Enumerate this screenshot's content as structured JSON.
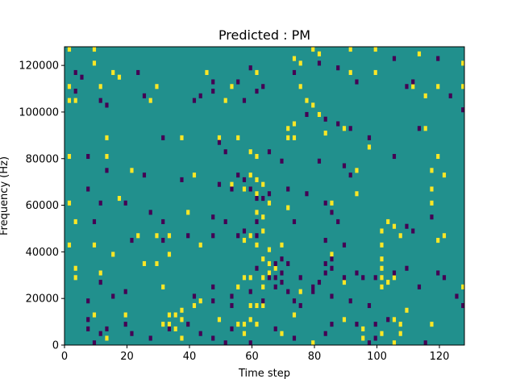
{
  "chart_data": {
    "type": "heatmap",
    "title": "Predicted : PM",
    "xlabel": "Time step",
    "ylabel": "Frequency (Hz)",
    "xlim": [
      0,
      128
    ],
    "ylim": [
      0,
      128000
    ],
    "xticks": [
      0,
      20,
      40,
      60,
      80,
      100,
      120
    ],
    "yticks": [
      0,
      20000,
      40000,
      60000,
      80000,
      100000,
      120000
    ],
    "ytick_labels": [
      "0",
      "20000",
      "40000",
      "60000",
      "80000",
      "100000",
      "120000"
    ],
    "grid": false,
    "legend": "none",
    "n_time_steps": 128,
    "n_freq_bins": 64,
    "bin_hz": 2000,
    "colors": {
      "background": "#21908d",
      "high": "#fde725",
      "low": "#440154"
    },
    "high_cells": [
      [
        1,
        127000
      ],
      [
        9,
        127000
      ],
      [
        79,
        127000
      ],
      [
        81,
        125000
      ],
      [
        91,
        127000
      ],
      [
        99,
        127000
      ],
      [
        113,
        125000
      ],
      [
        9,
        121000
      ],
      [
        73,
        123000
      ],
      [
        75,
        121000
      ],
      [
        127,
        121000
      ],
      [
        15,
        117000
      ],
      [
        45,
        117000
      ],
      [
        61,
        117000
      ],
      [
        99,
        117000
      ],
      [
        91,
        117000
      ],
      [
        1,
        111000
      ],
      [
        11,
        111000
      ],
      [
        17,
        115000
      ],
      [
        29,
        111000
      ],
      [
        53,
        111000
      ],
      [
        75,
        111000
      ],
      [
        111,
        111000
      ],
      [
        115,
        107000
      ],
      [
        119,
        111000
      ],
      [
        127,
        111000
      ],
      [
        1,
        105000
      ],
      [
        3,
        105000
      ],
      [
        51,
        105000
      ],
      [
        77,
        105000
      ],
      [
        27,
        105000
      ],
      [
        79,
        103000
      ],
      [
        81,
        99000
      ],
      [
        73,
        95000
      ],
      [
        71,
        93000
      ],
      [
        89,
        93000
      ],
      [
        115,
        93000
      ],
      [
        83,
        91000
      ],
      [
        37,
        89000
      ],
      [
        13,
        89000
      ],
      [
        49,
        89000
      ],
      [
        55,
        89000
      ],
      [
        71,
        89000
      ],
      [
        73,
        89000
      ],
      [
        97,
        85000
      ],
      [
        1,
        81000
      ],
      [
        13,
        81000
      ],
      [
        59,
        83000
      ],
      [
        61,
        81000
      ],
      [
        119,
        81000
      ],
      [
        21,
        75000
      ],
      [
        41,
        73000
      ],
      [
        59,
        73000
      ],
      [
        61,
        71000
      ],
      [
        63,
        69000
      ],
      [
        53,
        69000
      ],
      [
        93,
        75000
      ],
      [
        117,
        75000
      ],
      [
        121,
        73000
      ],
      [
        57,
        67000
      ],
      [
        61,
        65000
      ],
      [
        17,
        63000
      ],
      [
        117,
        67000
      ],
      [
        93,
        65000
      ],
      [
        65,
        61000
      ],
      [
        71,
        59000
      ],
      [
        1,
        61000
      ],
      [
        85,
        61000
      ],
      [
        117,
        61000
      ],
      [
        39,
        57000
      ],
      [
        61,
        57000
      ],
      [
        63,
        55000
      ],
      [
        3,
        53000
      ],
      [
        103,
        53000
      ],
      [
        105,
        51000
      ],
      [
        63,
        49000
      ],
      [
        101,
        49000
      ],
      [
        107,
        47000
      ],
      [
        23,
        47000
      ],
      [
        29,
        47000
      ],
      [
        33,
        47000
      ],
      [
        59,
        47000
      ],
      [
        121,
        47000
      ],
      [
        57,
        45000
      ],
      [
        43,
        43000
      ],
      [
        61,
        43000
      ],
      [
        69,
        43000
      ],
      [
        1,
        43000
      ],
      [
        9,
        43000
      ],
      [
        101,
        43000
      ],
      [
        119,
        45000
      ],
      [
        65,
        41000
      ],
      [
        33,
        39000
      ],
      [
        15,
        39000
      ],
      [
        25,
        35000
      ],
      [
        29,
        35000
      ],
      [
        63,
        37000
      ],
      [
        65,
        35000
      ],
      [
        65,
        31000
      ],
      [
        63,
        29000
      ],
      [
        67,
        33000
      ],
      [
        85,
        39000
      ],
      [
        3,
        33000
      ],
      [
        11,
        31000
      ],
      [
        101,
        37000
      ],
      [
        101,
        33000
      ],
      [
        101,
        29000
      ],
      [
        59,
        29000
      ],
      [
        57,
        29000
      ],
      [
        103,
        27000
      ],
      [
        105,
        29000
      ],
      [
        55,
        25000
      ],
      [
        63,
        25000
      ],
      [
        31,
        25000
      ],
      [
        3,
        29000
      ],
      [
        127,
        25000
      ],
      [
        75,
        23000
      ],
      [
        101,
        25000
      ],
      [
        89,
        27000
      ],
      [
        43,
        19000
      ],
      [
        41,
        17000
      ],
      [
        61,
        17000
      ],
      [
        59,
        17000
      ],
      [
        63,
        17000
      ],
      [
        37,
        15000
      ],
      [
        35,
        13000
      ],
      [
        33,
        13000
      ],
      [
        31,
        9000
      ],
      [
        33,
        9000
      ],
      [
        35,
        7000
      ],
      [
        37,
        11000
      ],
      [
        49,
        11000
      ],
      [
        9,
        13000
      ],
      [
        19,
        13000
      ],
      [
        73,
        13000
      ],
      [
        89,
        11000
      ],
      [
        105,
        11000
      ],
      [
        107,
        9000
      ],
      [
        109,
        15000
      ],
      [
        117,
        9000
      ],
      [
        55,
        9000
      ],
      [
        57,
        9000
      ],
      [
        59,
        11000
      ],
      [
        61,
        9000
      ],
      [
        57,
        5000
      ],
      [
        69,
        5000
      ],
      [
        37,
        3000
      ],
      [
        13,
        3000
      ],
      [
        95,
        7000
      ],
      [
        95,
        3000
      ],
      [
        107,
        5000
      ],
      [
        105,
        1000
      ],
      [
        79,
        1000
      ],
      [
        101,
        5000
      ]
    ],
    "low_cells": [
      [
        59,
        119000
      ],
      [
        73,
        117000
      ],
      [
        81,
        121000
      ],
      [
        87,
        119000
      ],
      [
        105,
        123000
      ],
      [
        119,
        123000
      ],
      [
        3,
        117000
      ],
      [
        5,
        115000
      ],
      [
        23,
        117000
      ],
      [
        47,
        113000
      ],
      [
        55,
        113000
      ],
      [
        111,
        113000
      ],
      [
        109,
        111000
      ],
      [
        123,
        107000
      ],
      [
        93,
        113000
      ],
      [
        3,
        109000
      ],
      [
        11,
        105000
      ],
      [
        41,
        105000
      ],
      [
        43,
        107000
      ],
      [
        13,
        103000
      ],
      [
        25,
        107000
      ],
      [
        57,
        105000
      ],
      [
        63,
        111000
      ],
      [
        61,
        109000
      ],
      [
        47,
        109000
      ],
      [
        77,
        99000
      ],
      [
        83,
        97000
      ],
      [
        87,
        95000
      ],
      [
        91,
        93000
      ],
      [
        97,
        89000
      ],
      [
        113,
        93000
      ],
      [
        127,
        101000
      ],
      [
        31,
        89000
      ],
      [
        49,
        87000
      ],
      [
        51,
        83000
      ],
      [
        65,
        83000
      ],
      [
        69,
        79000
      ],
      [
        81,
        79000
      ],
      [
        7,
        81000
      ],
      [
        13,
        75000
      ],
      [
        25,
        73000
      ],
      [
        37,
        71000
      ],
      [
        49,
        69000
      ],
      [
        55,
        73000
      ],
      [
        57,
        71000
      ],
      [
        89,
        77000
      ],
      [
        91,
        73000
      ],
      [
        105,
        81000
      ],
      [
        53,
        67000
      ],
      [
        59,
        67000
      ],
      [
        61,
        63000
      ],
      [
        63,
        63000
      ],
      [
        65,
        65000
      ],
      [
        71,
        67000
      ],
      [
        77,
        65000
      ],
      [
        83,
        61000
      ],
      [
        7,
        67000
      ],
      [
        11,
        61000
      ],
      [
        19,
        61000
      ],
      [
        27,
        57000
      ],
      [
        31,
        53000
      ],
      [
        47,
        55000
      ],
      [
        51,
        53000
      ],
      [
        61,
        53000
      ],
      [
        85,
        57000
      ],
      [
        87,
        53000
      ],
      [
        73,
        53000
      ],
      [
        109,
        51000
      ],
      [
        111,
        49000
      ],
      [
        117,
        55000
      ],
      [
        9,
        53000
      ],
      [
        21,
        45000
      ],
      [
        31,
        45000
      ],
      [
        39,
        47000
      ],
      [
        47,
        47000
      ],
      [
        55,
        47000
      ],
      [
        57,
        49000
      ],
      [
        61,
        47000
      ],
      [
        83,
        45000
      ],
      [
        89,
        43000
      ],
      [
        69,
        37000
      ],
      [
        71,
        35000
      ],
      [
        67,
        29000
      ],
      [
        67,
        25000
      ],
      [
        69,
        31000
      ],
      [
        67,
        35000
      ],
      [
        65,
        29000
      ],
      [
        61,
        33000
      ],
      [
        71,
        23000
      ],
      [
        69,
        27000
      ],
      [
        75,
        29000
      ],
      [
        79,
        23000
      ],
      [
        79,
        25000
      ],
      [
        81,
        27000
      ],
      [
        83,
        31000
      ],
      [
        85,
        33000
      ],
      [
        83,
        35000
      ],
      [
        85,
        37000
      ],
      [
        89,
        29000
      ],
      [
        93,
        31000
      ],
      [
        95,
        29000
      ],
      [
        99,
        29000
      ],
      [
        105,
        31000
      ],
      [
        109,
        33000
      ],
      [
        113,
        25000
      ],
      [
        119,
        31000
      ],
      [
        121,
        29000
      ],
      [
        125,
        21000
      ],
      [
        127,
        17000
      ],
      [
        11,
        27000
      ],
      [
        15,
        21000
      ],
      [
        7,
        19000
      ],
      [
        19,
        23000
      ],
      [
        41,
        21000
      ],
      [
        47,
        25000
      ],
      [
        47,
        19000
      ],
      [
        53,
        21000
      ],
      [
        53,
        17000
      ],
      [
        59,
        23000
      ],
      [
        63,
        19000
      ],
      [
        73,
        19000
      ],
      [
        75,
        17000
      ],
      [
        85,
        21000
      ],
      [
        91,
        19000
      ],
      [
        97,
        17000
      ],
      [
        7,
        11000
      ],
      [
        7,
        7000
      ],
      [
        9,
        1000
      ],
      [
        11,
        5000
      ],
      [
        13,
        7000
      ],
      [
        19,
        9000
      ],
      [
        21,
        5000
      ],
      [
        27,
        3000
      ],
      [
        33,
        7000
      ],
      [
        39,
        9000
      ],
      [
        43,
        5000
      ],
      [
        47,
        3000
      ],
      [
        51,
        1000
      ],
      [
        53,
        7000
      ],
      [
        59,
        1000
      ],
      [
        67,
        7000
      ],
      [
        73,
        3000
      ],
      [
        83,
        5000
      ],
      [
        85,
        9000
      ],
      [
        93,
        9000
      ],
      [
        97,
        1000
      ],
      [
        99,
        3000
      ],
      [
        99,
        9000
      ],
      [
        103,
        11000
      ],
      [
        115,
        1000
      ]
    ]
  }
}
